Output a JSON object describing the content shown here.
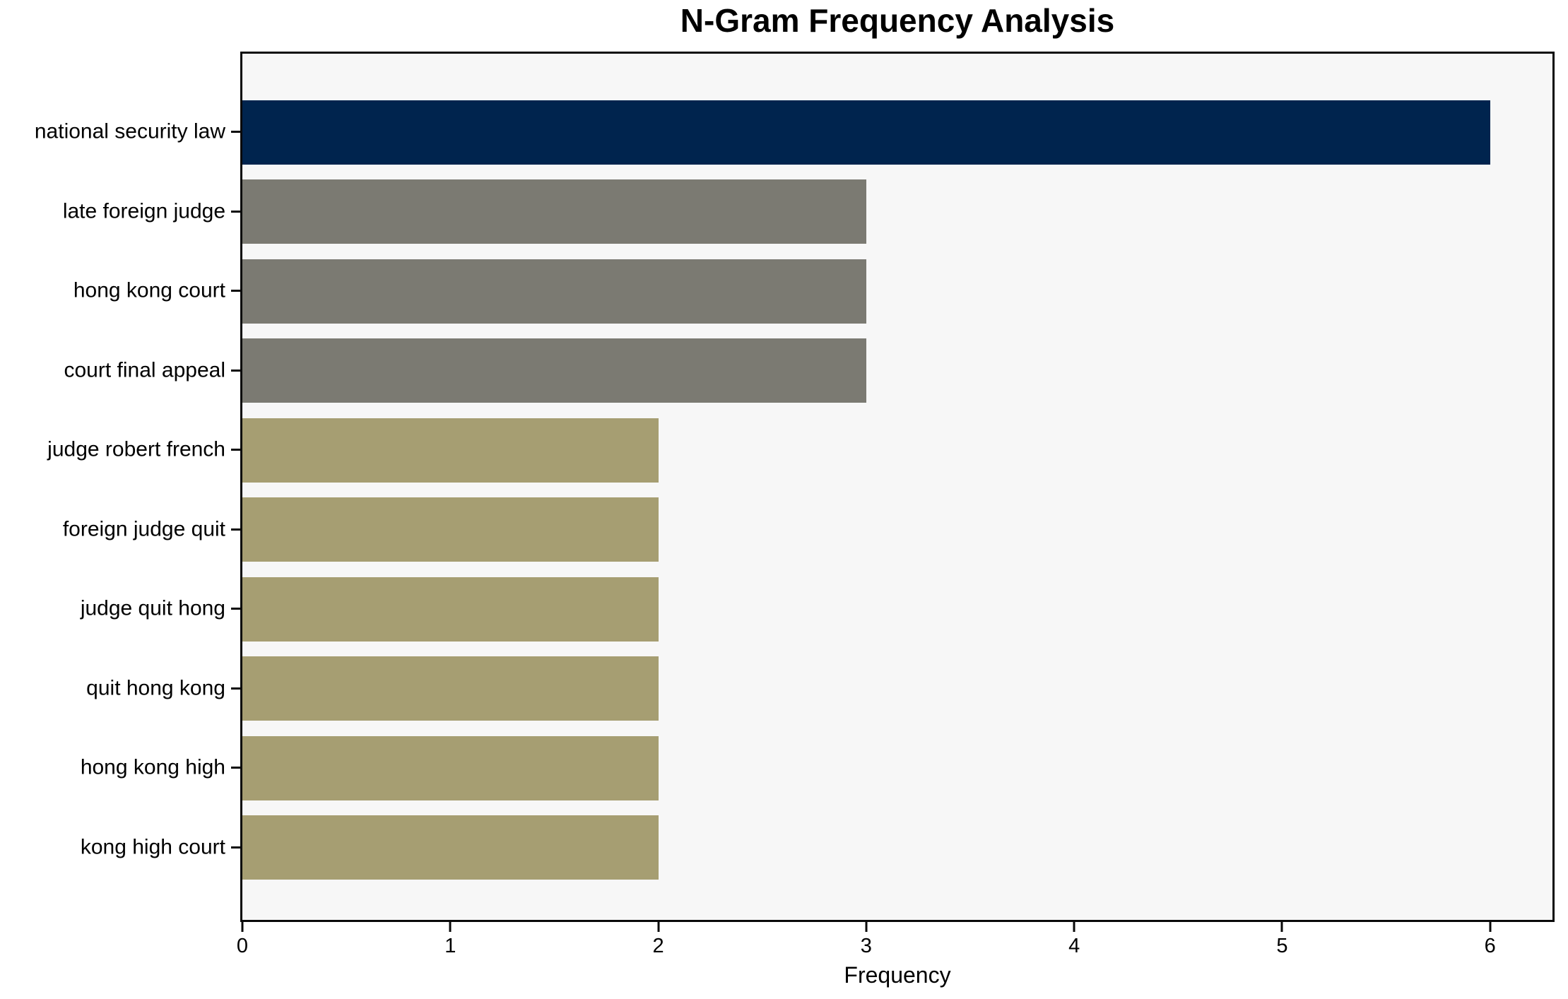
{
  "figure": {
    "title": "N-Gram Frequency Analysis",
    "xlabel": "Frequency"
  },
  "chart_data": {
    "type": "bar",
    "orientation": "horizontal",
    "title": "N-Gram Frequency Analysis",
    "xlabel": "Frequency",
    "ylabel": "",
    "categories": [
      "national security law",
      "late foreign judge",
      "hong kong court",
      "court final appeal",
      "judge robert french",
      "foreign judge quit",
      "judge quit hong",
      "quit hong kong",
      "hong kong high",
      "kong high court"
    ],
    "values": [
      6,
      3,
      3,
      3,
      2,
      2,
      2,
      2,
      2,
      2
    ],
    "bar_colors": [
      "#00244e",
      "#7b7a72",
      "#7b7a72",
      "#7b7a72",
      "#a69e72",
      "#a69e72",
      "#a69e72",
      "#a69e72",
      "#a69e72",
      "#a69e72"
    ],
    "xticks": [
      0,
      1,
      2,
      3,
      4,
      5,
      6
    ],
    "xlim": [
      0,
      6.3
    ],
    "grid": false,
    "legend": "none",
    "plot_background": "#f7f7f7",
    "figure_background": "#ffffff",
    "spine_color": "#0a0a0a",
    "text_color": "#000000"
  }
}
